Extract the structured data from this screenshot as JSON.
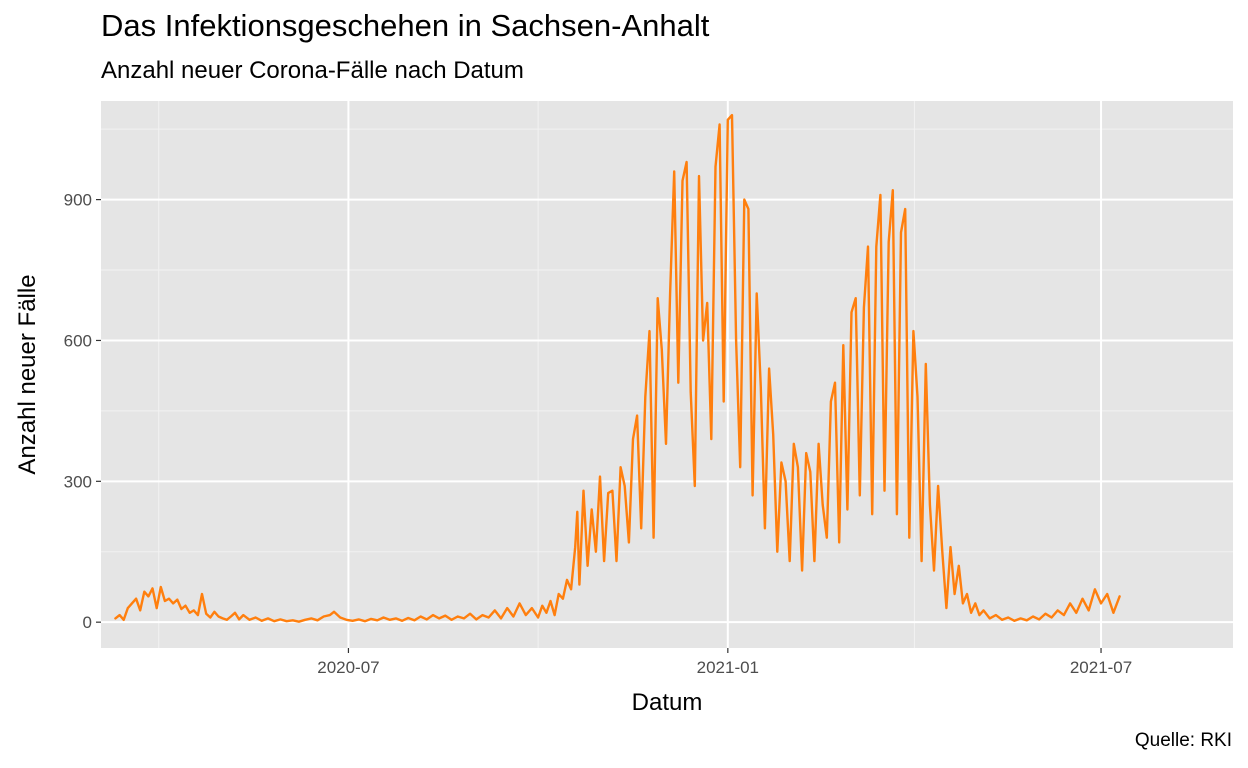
{
  "header": {
    "title": "Das Infektionsgeschehen in Sachsen-Anhalt",
    "subtitle": "Anzahl neuer Corona-Fälle nach Datum"
  },
  "caption": "Quelle: RKI",
  "chart_data": {
    "type": "line",
    "title": "Das Infektionsgeschehen in Sachsen-Anhalt",
    "subtitle": "Anzahl neuer Corona-Fälle nach Datum",
    "xlabel": "Datum",
    "ylabel": "Anzahl neuer Fälle",
    "x_tick_labels": [
      "2020-07",
      "2021-01",
      "2021-07"
    ],
    "y_ticks": [
      0,
      300,
      600,
      900
    ],
    "xlim": [
      "2020-03-03",
      "2021-09-03"
    ],
    "ylim": [
      -55,
      1110
    ],
    "grid": true,
    "line_color": "#ff7f0e",
    "panel_color": "#e5e5e5",
    "series": [
      {
        "points": [
          [
            "2020-03-10",
            8
          ],
          [
            "2020-03-12",
            15
          ],
          [
            "2020-03-14",
            5
          ],
          [
            "2020-03-16",
            30
          ],
          [
            "2020-03-18",
            40
          ],
          [
            "2020-03-20",
            50
          ],
          [
            "2020-03-22",
            25
          ],
          [
            "2020-03-24",
            65
          ],
          [
            "2020-03-26",
            55
          ],
          [
            "2020-03-28",
            72
          ],
          [
            "2020-03-30",
            30
          ],
          [
            "2020-04-01",
            75
          ],
          [
            "2020-04-03",
            45
          ],
          [
            "2020-04-05",
            50
          ],
          [
            "2020-04-07",
            40
          ],
          [
            "2020-04-09",
            48
          ],
          [
            "2020-04-11",
            28
          ],
          [
            "2020-04-13",
            35
          ],
          [
            "2020-04-15",
            20
          ],
          [
            "2020-04-17",
            25
          ],
          [
            "2020-04-19",
            15
          ],
          [
            "2020-04-21",
            60
          ],
          [
            "2020-04-23",
            18
          ],
          [
            "2020-04-25",
            10
          ],
          [
            "2020-04-27",
            22
          ],
          [
            "2020-04-29",
            12
          ],
          [
            "2020-05-01",
            8
          ],
          [
            "2020-05-03",
            5
          ],
          [
            "2020-05-05",
            12
          ],
          [
            "2020-05-07",
            20
          ],
          [
            "2020-05-09",
            6
          ],
          [
            "2020-05-11",
            15
          ],
          [
            "2020-05-14",
            5
          ],
          [
            "2020-05-17",
            10
          ],
          [
            "2020-05-20",
            3
          ],
          [
            "2020-05-23",
            8
          ],
          [
            "2020-05-26",
            2
          ],
          [
            "2020-05-29",
            6
          ],
          [
            "2020-06-01",
            2
          ],
          [
            "2020-06-04",
            4
          ],
          [
            "2020-06-07",
            1
          ],
          [
            "2020-06-10",
            5
          ],
          [
            "2020-06-13",
            8
          ],
          [
            "2020-06-16",
            4
          ],
          [
            "2020-06-19",
            12
          ],
          [
            "2020-06-22",
            15
          ],
          [
            "2020-06-24",
            22
          ],
          [
            "2020-06-27",
            10
          ],
          [
            "2020-06-30",
            5
          ],
          [
            "2020-07-03",
            3
          ],
          [
            "2020-07-06",
            6
          ],
          [
            "2020-07-09",
            2
          ],
          [
            "2020-07-12",
            7
          ],
          [
            "2020-07-15",
            4
          ],
          [
            "2020-07-18",
            10
          ],
          [
            "2020-07-21",
            5
          ],
          [
            "2020-07-24",
            8
          ],
          [
            "2020-07-27",
            3
          ],
          [
            "2020-07-30",
            9
          ],
          [
            "2020-08-02",
            4
          ],
          [
            "2020-08-05",
            12
          ],
          [
            "2020-08-08",
            6
          ],
          [
            "2020-08-11",
            15
          ],
          [
            "2020-08-14",
            8
          ],
          [
            "2020-08-17",
            14
          ],
          [
            "2020-08-20",
            5
          ],
          [
            "2020-08-23",
            12
          ],
          [
            "2020-08-26",
            8
          ],
          [
            "2020-08-29",
            18
          ],
          [
            "2020-09-01",
            6
          ],
          [
            "2020-09-04",
            15
          ],
          [
            "2020-09-07",
            10
          ],
          [
            "2020-09-10",
            25
          ],
          [
            "2020-09-13",
            8
          ],
          [
            "2020-09-16",
            30
          ],
          [
            "2020-09-19",
            12
          ],
          [
            "2020-09-22",
            40
          ],
          [
            "2020-09-25",
            15
          ],
          [
            "2020-09-28",
            30
          ],
          [
            "2020-10-01",
            10
          ],
          [
            "2020-10-03",
            35
          ],
          [
            "2020-10-05",
            20
          ],
          [
            "2020-10-07",
            45
          ],
          [
            "2020-10-09",
            15
          ],
          [
            "2020-10-11",
            60
          ],
          [
            "2020-10-13",
            50
          ],
          [
            "2020-10-15",
            90
          ],
          [
            "2020-10-17",
            70
          ],
          [
            "2020-10-19",
            160
          ],
          [
            "2020-10-20",
            235
          ],
          [
            "2020-10-21",
            80
          ],
          [
            "2020-10-23",
            280
          ],
          [
            "2020-10-25",
            120
          ],
          [
            "2020-10-27",
            240
          ],
          [
            "2020-10-29",
            150
          ],
          [
            "2020-10-31",
            310
          ],
          [
            "2020-11-02",
            130
          ],
          [
            "2020-11-04",
            275
          ],
          [
            "2020-11-06",
            280
          ],
          [
            "2020-11-08",
            130
          ],
          [
            "2020-11-10",
            330
          ],
          [
            "2020-11-12",
            290
          ],
          [
            "2020-11-14",
            170
          ],
          [
            "2020-11-16",
            390
          ],
          [
            "2020-11-18",
            440
          ],
          [
            "2020-11-20",
            200
          ],
          [
            "2020-11-22",
            480
          ],
          [
            "2020-11-24",
            620
          ],
          [
            "2020-11-26",
            180
          ],
          [
            "2020-11-28",
            690
          ],
          [
            "2020-11-30",
            580
          ],
          [
            "2020-12-02",
            380
          ],
          [
            "2020-12-04",
            700
          ],
          [
            "2020-12-06",
            960
          ],
          [
            "2020-12-08",
            510
          ],
          [
            "2020-12-10",
            940
          ],
          [
            "2020-12-12",
            980
          ],
          [
            "2020-12-14",
            490
          ],
          [
            "2020-12-16",
            290
          ],
          [
            "2020-12-18",
            950
          ],
          [
            "2020-12-20",
            600
          ],
          [
            "2020-12-22",
            680
          ],
          [
            "2020-12-24",
            390
          ],
          [
            "2020-12-26",
            970
          ],
          [
            "2020-12-28",
            1060
          ],
          [
            "2020-12-30",
            470
          ],
          [
            "2021-01-01",
            1070
          ],
          [
            "2021-01-03",
            1080
          ],
          [
            "2021-01-05",
            600
          ],
          [
            "2021-01-07",
            330
          ],
          [
            "2021-01-09",
            900
          ],
          [
            "2021-01-11",
            880
          ],
          [
            "2021-01-13",
            270
          ],
          [
            "2021-01-15",
            700
          ],
          [
            "2021-01-17",
            500
          ],
          [
            "2021-01-19",
            200
          ],
          [
            "2021-01-21",
            540
          ],
          [
            "2021-01-23",
            400
          ],
          [
            "2021-01-25",
            150
          ],
          [
            "2021-01-27",
            340
          ],
          [
            "2021-01-29",
            300
          ],
          [
            "2021-01-31",
            130
          ],
          [
            "2021-02-02",
            380
          ],
          [
            "2021-02-04",
            330
          ],
          [
            "2021-02-06",
            110
          ],
          [
            "2021-02-08",
            360
          ],
          [
            "2021-02-10",
            320
          ],
          [
            "2021-02-12",
            130
          ],
          [
            "2021-02-14",
            380
          ],
          [
            "2021-02-16",
            250
          ],
          [
            "2021-02-18",
            180
          ],
          [
            "2021-02-20",
            470
          ],
          [
            "2021-02-22",
            510
          ],
          [
            "2021-02-24",
            170
          ],
          [
            "2021-02-26",
            590
          ],
          [
            "2021-02-28",
            240
          ],
          [
            "2021-03-02",
            660
          ],
          [
            "2021-03-04",
            690
          ],
          [
            "2021-03-06",
            270
          ],
          [
            "2021-03-08",
            670
          ],
          [
            "2021-03-10",
            800
          ],
          [
            "2021-03-12",
            230
          ],
          [
            "2021-03-14",
            800
          ],
          [
            "2021-03-16",
            910
          ],
          [
            "2021-03-18",
            280
          ],
          [
            "2021-03-20",
            810
          ],
          [
            "2021-03-22",
            920
          ],
          [
            "2021-03-24",
            230
          ],
          [
            "2021-03-26",
            830
          ],
          [
            "2021-03-28",
            880
          ],
          [
            "2021-03-30",
            180
          ],
          [
            "2021-04-01",
            620
          ],
          [
            "2021-04-03",
            480
          ],
          [
            "2021-04-05",
            130
          ],
          [
            "2021-04-07",
            550
          ],
          [
            "2021-04-09",
            250
          ],
          [
            "2021-04-11",
            110
          ],
          [
            "2021-04-13",
            290
          ],
          [
            "2021-04-15",
            150
          ],
          [
            "2021-04-17",
            30
          ],
          [
            "2021-04-19",
            160
          ],
          [
            "2021-04-21",
            60
          ],
          [
            "2021-04-23",
            120
          ],
          [
            "2021-04-25",
            40
          ],
          [
            "2021-04-27",
            60
          ],
          [
            "2021-04-29",
            20
          ],
          [
            "2021-05-01",
            40
          ],
          [
            "2021-05-03",
            15
          ],
          [
            "2021-05-05",
            25
          ],
          [
            "2021-05-08",
            8
          ],
          [
            "2021-05-11",
            15
          ],
          [
            "2021-05-14",
            5
          ],
          [
            "2021-05-17",
            10
          ],
          [
            "2021-05-20",
            3
          ],
          [
            "2021-05-23",
            8
          ],
          [
            "2021-05-26",
            4
          ],
          [
            "2021-05-29",
            12
          ],
          [
            "2021-06-01",
            6
          ],
          [
            "2021-06-04",
            18
          ],
          [
            "2021-06-07",
            10
          ],
          [
            "2021-06-10",
            25
          ],
          [
            "2021-06-13",
            15
          ],
          [
            "2021-06-16",
            40
          ],
          [
            "2021-06-19",
            20
          ],
          [
            "2021-06-22",
            50
          ],
          [
            "2021-06-25",
            25
          ],
          [
            "2021-06-28",
            70
          ],
          [
            "2021-07-01",
            40
          ],
          [
            "2021-07-04",
            60
          ],
          [
            "2021-07-07",
            20
          ],
          [
            "2021-07-10",
            55
          ]
        ]
      }
    ]
  }
}
